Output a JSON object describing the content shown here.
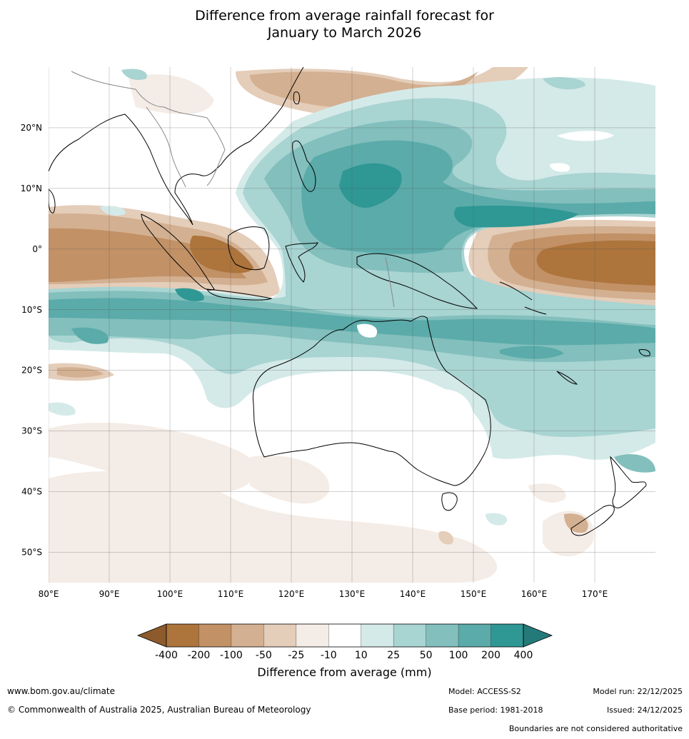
{
  "title": {
    "line1": "Difference from average rainfall forecast for",
    "line2": "January to March 2026"
  },
  "map": {
    "lon_range": [
      80,
      180
    ],
    "lat_range": [
      -55,
      30
    ],
    "lon_ticks": [
      "80°E",
      "90°E",
      "100°E",
      "110°E",
      "120°E",
      "130°E",
      "140°E",
      "150°E",
      "160°E",
      "170°E"
    ],
    "lat_ticks": [
      "20°N",
      "10°N",
      "0°",
      "10°S",
      "20°S",
      "30°S",
      "40°S",
      "50°S"
    ],
    "lat_tick_values": [
      20,
      10,
      0,
      -10,
      -20,
      -30,
      -40,
      -50
    ],
    "lon_tick_values": [
      80,
      90,
      100,
      110,
      120,
      130,
      140,
      150,
      160,
      170
    ]
  },
  "colorbar": {
    "labels": [
      "-400",
      "-200",
      "-100",
      "-50",
      "-25",
      "-10",
      "10",
      "25",
      "50",
      "100",
      "200",
      "400"
    ],
    "colors": [
      "#8c5a2b",
      "#ad743c",
      "#c29166",
      "#d3b091",
      "#e4cdb9",
      "#f4ece6",
      "#ffffff",
      "#d4eae8",
      "#a8d4d2",
      "#82bfbd",
      "#5aaba9",
      "#2f9794",
      "#247a78"
    ],
    "title": "Difference from average (mm)"
  },
  "footer": {
    "website": "www.bom.gov.au/climate",
    "copyright": "© Commonwealth of Australia 2025, Australian Bureau of Meteorology",
    "model": "Model: ACCESS-S2",
    "base_period": "Base period: 1981-2018",
    "model_run": "Model run: 22/12/2025",
    "issued": "Issued: 24/12/2025",
    "disclaimer": "Boundaries are not considered authoritative"
  }
}
